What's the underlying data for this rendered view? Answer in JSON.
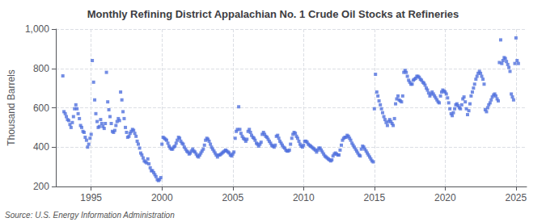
{
  "chart_data": {
    "type": "scatter",
    "title": "Monthly Refining District Appalachian No. 1 Crude Oil Stocks at Refineries",
    "ylabel": "Thousand Barrels",
    "annotations": [
      "Source: U.S. Energy Information Administration"
    ],
    "marker": "square",
    "grid": true,
    "xlim": [
      1992.5,
      2025.75
    ],
    "xticks": [
      1995,
      2000,
      2005,
      2010,
      2015,
      2020,
      2025
    ],
    "ylim": [
      200,
      1000
    ],
    "yticks": [
      200,
      400,
      600,
      800,
      {
        "value": 1000,
        "label": "1,000"
      }
    ],
    "x": [
      1993.0,
      1993.08,
      1993.17,
      1993.25,
      1993.33,
      1993.42,
      1993.5,
      1993.58,
      1993.67,
      1993.75,
      1993.83,
      1993.92,
      1994.0,
      1994.08,
      1994.17,
      1994.25,
      1994.33,
      1994.42,
      1994.5,
      1994.58,
      1994.67,
      1994.75,
      1994.83,
      1994.92,
      1995.0,
      1995.08,
      1995.17,
      1995.25,
      1995.33,
      1995.42,
      1995.5,
      1995.58,
      1995.67,
      1995.75,
      1995.83,
      1995.92,
      1996.0,
      1996.08,
      1996.17,
      1996.25,
      1996.33,
      1996.42,
      1996.5,
      1996.58,
      1996.67,
      1996.75,
      1996.83,
      1996.92,
      1997.0,
      1997.08,
      1997.17,
      1997.25,
      1997.33,
      1997.42,
      1997.5,
      1997.58,
      1997.67,
      1997.75,
      1997.83,
      1997.92,
      1998.0,
      1998.08,
      1998.17,
      1998.25,
      1998.33,
      1998.42,
      1998.5,
      1998.58,
      1998.67,
      1998.75,
      1998.83,
      1998.92,
      1999.0,
      1999.08,
      1999.17,
      1999.25,
      1999.33,
      1999.42,
      1999.5,
      1999.58,
      1999.67,
      1999.75,
      1999.83,
      1999.92,
      2000.0,
      2000.08,
      2000.17,
      2000.25,
      2000.33,
      2000.42,
      2000.5,
      2000.58,
      2000.67,
      2000.75,
      2000.83,
      2000.92,
      2001.0,
      2001.08,
      2001.17,
      2001.25,
      2001.33,
      2001.42,
      2001.5,
      2001.58,
      2001.67,
      2001.75,
      2001.83,
      2001.92,
      2002.0,
      2002.08,
      2002.17,
      2002.25,
      2002.33,
      2002.42,
      2002.5,
      2002.58,
      2002.67,
      2002.75,
      2002.83,
      2002.92,
      2003.0,
      2003.08,
      2003.17,
      2003.25,
      2003.33,
      2003.42,
      2003.5,
      2003.58,
      2003.67,
      2003.75,
      2003.83,
      2003.92,
      2004.0,
      2004.08,
      2004.17,
      2004.25,
      2004.33,
      2004.42,
      2004.5,
      2004.58,
      2004.67,
      2004.75,
      2004.83,
      2004.92,
      2005.0,
      2005.08,
      2005.17,
      2005.25,
      2005.33,
      2005.42,
      2005.5,
      2005.58,
      2005.67,
      2005.75,
      2005.83,
      2005.92,
      2006.0,
      2006.08,
      2006.17,
      2006.25,
      2006.33,
      2006.42,
      2006.5,
      2006.58,
      2006.67,
      2006.75,
      2006.83,
      2006.92,
      2007.0,
      2007.08,
      2007.17,
      2007.25,
      2007.33,
      2007.42,
      2007.5,
      2007.58,
      2007.67,
      2007.75,
      2007.83,
      2007.92,
      2008.0,
      2008.08,
      2008.17,
      2008.25,
      2008.33,
      2008.42,
      2008.5,
      2008.58,
      2008.67,
      2008.75,
      2008.83,
      2008.92,
      2009.0,
      2009.08,
      2009.17,
      2009.25,
      2009.33,
      2009.42,
      2009.5,
      2009.58,
      2009.67,
      2009.75,
      2009.83,
      2009.92,
      2010.0,
      2010.08,
      2010.17,
      2010.25,
      2010.33,
      2010.42,
      2010.5,
      2010.58,
      2010.67,
      2010.75,
      2010.83,
      2010.92,
      2011.0,
      2011.08,
      2011.17,
      2011.25,
      2011.33,
      2011.42,
      2011.5,
      2011.58,
      2011.67,
      2011.75,
      2011.83,
      2011.92,
      2012.0,
      2012.08,
      2012.17,
      2012.25,
      2012.33,
      2012.42,
      2012.5,
      2012.58,
      2012.67,
      2012.75,
      2012.83,
      2012.92,
      2013.0,
      2013.08,
      2013.17,
      2013.25,
      2013.33,
      2013.42,
      2013.5,
      2013.58,
      2013.67,
      2013.75,
      2013.83,
      2013.92,
      2014.0,
      2014.08,
      2014.17,
      2014.25,
      2014.33,
      2014.42,
      2014.5,
      2014.58,
      2014.67,
      2014.75,
      2014.83,
      2014.92,
      2015.0,
      2015.08,
      2015.17,
      2015.25,
      2015.33,
      2015.42,
      2015.5,
      2015.58,
      2015.67,
      2015.75,
      2015.83,
      2015.92,
      2016.0,
      2016.08,
      2016.17,
      2016.25,
      2016.33,
      2016.42,
      2016.5,
      2016.58,
      2016.67,
      2016.75,
      2016.83,
      2016.92,
      2017.0,
      2017.08,
      2017.17,
      2017.25,
      2017.33,
      2017.42,
      2017.5,
      2017.58,
      2017.67,
      2017.75,
      2017.83,
      2017.92,
      2018.0,
      2018.08,
      2018.17,
      2018.25,
      2018.33,
      2018.42,
      2018.5,
      2018.58,
      2018.67,
      2018.75,
      2018.83,
      2018.92,
      2019.0,
      2019.08,
      2019.17,
      2019.25,
      2019.33,
      2019.42,
      2019.5,
      2019.58,
      2019.67,
      2019.75,
      2019.83,
      2019.92,
      2020.0,
      2020.08,
      2020.17,
      2020.25,
      2020.33,
      2020.42,
      2020.5,
      2020.58,
      2020.67,
      2020.75,
      2020.83,
      2020.92,
      2021.0,
      2021.08,
      2021.17,
      2021.25,
      2021.33,
      2021.42,
      2021.5,
      2021.58,
      2021.67,
      2021.75,
      2021.83,
      2021.92,
      2022.0,
      2022.08,
      2022.17,
      2022.25,
      2022.33,
      2022.42,
      2022.5,
      2022.58,
      2022.67,
      2022.75,
      2022.83,
      2022.92,
      2023.0,
      2023.08,
      2023.17,
      2023.25,
      2023.33,
      2023.42,
      2023.5,
      2023.58,
      2023.67,
      2023.75,
      2023.83,
      2023.92,
      2024.0,
      2024.08,
      2024.17,
      2024.25,
      2024.33,
      2024.42,
      2024.5,
      2024.58,
      2024.67,
      2024.75,
      2024.83,
      2024.92,
      2025.0,
      2025.08,
      2025.17
    ],
    "values": [
      762,
      580,
      570,
      555,
      540,
      535,
      515,
      500,
      525,
      555,
      595,
      615,
      595,
      570,
      545,
      510,
      500,
      480,
      475,
      450,
      435,
      400,
      415,
      445,
      465,
      840,
      730,
      640,
      570,
      530,
      500,
      505,
      540,
      520,
      505,
      495,
      520,
      780,
      630,
      590,
      555,
      520,
      480,
      475,
      485,
      510,
      530,
      545,
      535,
      680,
      640,
      580,
      545,
      500,
      475,
      450,
      455,
      470,
      480,
      490,
      485,
      470,
      455,
      430,
      415,
      395,
      370,
      360,
      345,
      330,
      325,
      320,
      340,
      315,
      295,
      280,
      280,
      270,
      260,
      250,
      235,
      230,
      235,
      245,
      415,
      450,
      445,
      440,
      435,
      420,
      405,
      395,
      390,
      390,
      400,
      405,
      420,
      435,
      450,
      445,
      430,
      420,
      415,
      400,
      390,
      380,
      375,
      365,
      370,
      380,
      390,
      380,
      375,
      365,
      355,
      350,
      360,
      370,
      380,
      390,
      410,
      435,
      445,
      440,
      430,
      415,
      400,
      390,
      380,
      370,
      360,
      350,
      360,
      360,
      365,
      370,
      375,
      380,
      385,
      380,
      375,
      370,
      360,
      355,
      365,
      375,
      445,
      480,
      490,
      605,
      490,
      470,
      455,
      445,
      440,
      430,
      440,
      480,
      490,
      475,
      460,
      450,
      445,
      435,
      420,
      415,
      405,
      415,
      425,
      465,
      475,
      465,
      455,
      450,
      440,
      430,
      420,
      410,
      405,
      400,
      410,
      455,
      460,
      445,
      430,
      420,
      410,
      400,
      395,
      385,
      380,
      380,
      385,
      415,
      445,
      465,
      475,
      470,
      455,
      445,
      430,
      415,
      405,
      400,
      410,
      430,
      430,
      425,
      415,
      410,
      405,
      400,
      395,
      390,
      385,
      375,
      385,
      395,
      395,
      385,
      375,
      365,
      355,
      350,
      345,
      340,
      335,
      330,
      335,
      355,
      365,
      370,
      365,
      360,
      360,
      385,
      410,
      435,
      445,
      450,
      450,
      460,
      455,
      445,
      435,
      420,
      410,
      400,
      390,
      380,
      370,
      360,
      355,
      390,
      405,
      400,
      390,
      380,
      370,
      360,
      350,
      340,
      330,
      325,
      595,
      770,
      680,
      660,
      635,
      615,
      595,
      575,
      555,
      540,
      525,
      510,
      530,
      540,
      530,
      520,
      510,
      545,
      620,
      645,
      660,
      640,
      635,
      630,
      660,
      780,
      790,
      780,
      760,
      740,
      730,
      720,
      720,
      740,
      745,
      750,
      760,
      760,
      755,
      745,
      740,
      730,
      725,
      715,
      700,
      690,
      675,
      660,
      670,
      680,
      670,
      660,
      650,
      640,
      630,
      625,
      660,
      680,
      690,
      685,
      680,
      670,
      650,
      625,
      595,
      570,
      560,
      575,
      595,
      615,
      620,
      610,
      600,
      595,
      615,
      645,
      655,
      630,
      595,
      565,
      585,
      620,
      660,
      680,
      700,
      720,
      745,
      760,
      775,
      785,
      775,
      760,
      745,
      720,
      590,
      580,
      600,
      615,
      625,
      640,
      655,
      665,
      670,
      660,
      645,
      635,
      830,
      945,
      825,
      840,
      855,
      850,
      835,
      820,
      805,
      785,
      670,
      655,
      640,
      825,
      955,
      840,
      825
    ]
  }
}
